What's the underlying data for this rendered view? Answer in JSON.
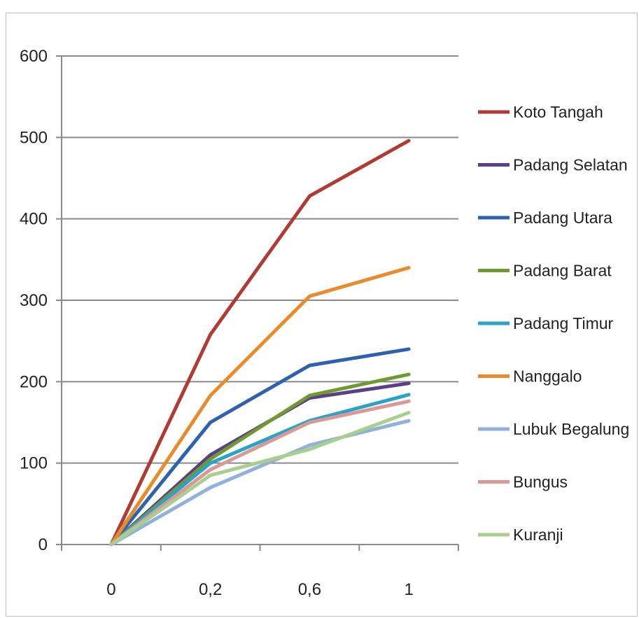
{
  "chart_data": {
    "type": "line",
    "categories": [
      "0",
      "0,2",
      "0,6",
      "1"
    ],
    "ylim": [
      0,
      600
    ],
    "yticks": [
      0,
      100,
      200,
      300,
      400,
      500,
      600
    ],
    "grid": true,
    "legend_position": "right",
    "series": [
      {
        "name": "Koto Tangah",
        "color": "#b03a34",
        "values": [
          0,
          258,
          428,
          496
        ]
      },
      {
        "name": "Padang Selatan",
        "color": "#5b3f8a",
        "values": [
          0,
          110,
          180,
          198
        ]
      },
      {
        "name": "Padang Utara",
        "color": "#2e62b0",
        "values": [
          0,
          150,
          220,
          240
        ]
      },
      {
        "name": "Padang Barat",
        "color": "#6f9a2f",
        "values": [
          0,
          105,
          183,
          209
        ]
      },
      {
        "name": "Padang Timur",
        "color": "#2aa3c8",
        "values": [
          0,
          100,
          152,
          184
        ]
      },
      {
        "name": "Nanggalo",
        "color": "#e88b2c",
        "values": [
          0,
          183,
          305,
          340
        ]
      },
      {
        "name": "Lubuk Begalung",
        "color": "#8fb1dc",
        "values": [
          0,
          70,
          122,
          152
        ]
      },
      {
        "name": "Bungus",
        "color": "#dc9797",
        "values": [
          0,
          92,
          150,
          176
        ]
      },
      {
        "name": "Kuranji",
        "color": "#a9cf8f",
        "values": [
          0,
          85,
          117,
          162
        ]
      }
    ]
  }
}
